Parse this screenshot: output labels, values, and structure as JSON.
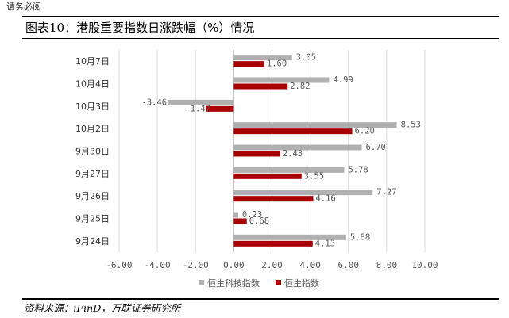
{
  "header": {
    "top_text": "请务必阅",
    "title": "图表10：港股重要指数日涨跌幅（%）情况"
  },
  "source": "资料来源：iFinD，万联证券研究所",
  "chart_data": {
    "type": "bar",
    "orientation": "horizontal",
    "title": "",
    "xlabel": "",
    "ylabel": "",
    "categories": [
      "10月7日",
      "10月4日",
      "10月3日",
      "10月2日",
      "9月30日",
      "9月27日",
      "9月26日",
      "9月25日",
      "9月24日"
    ],
    "series": [
      {
        "name": "恒生科技指数",
        "values": [
          3.05,
          4.99,
          -3.46,
          8.53,
          6.7,
          5.78,
          7.27,
          0.23,
          5.88
        ],
        "labels": [
          "3.05",
          "4.99",
          "-3.46",
          "8.53",
          "6.70",
          "5.78",
          "7.27",
          "0.23",
          "5.88"
        ],
        "color": "#b0b0b0"
      },
      {
        "name": "恒生指数",
        "values": [
          1.6,
          2.82,
          -1.47,
          6.2,
          2.43,
          3.55,
          4.16,
          0.68,
          4.13
        ],
        "labels": [
          "1.60",
          "2.82",
          "-1.47",
          "6.20",
          "2.43",
          "3.55",
          "4.16",
          "0.68",
          "4.13"
        ],
        "color": "#a80000"
      }
    ],
    "xlim": [
      -6,
      10
    ],
    "xticks": [
      -6,
      -4,
      -2,
      0,
      2,
      4,
      6,
      8,
      10
    ],
    "xtick_labels": [
      "-6.00",
      "-4.00",
      "-2.00",
      "0.00",
      "2.00",
      "4.00",
      "6.00",
      "8.00",
      "10.00"
    ],
    "grid": "vertical",
    "legend_position": "bottom"
  }
}
